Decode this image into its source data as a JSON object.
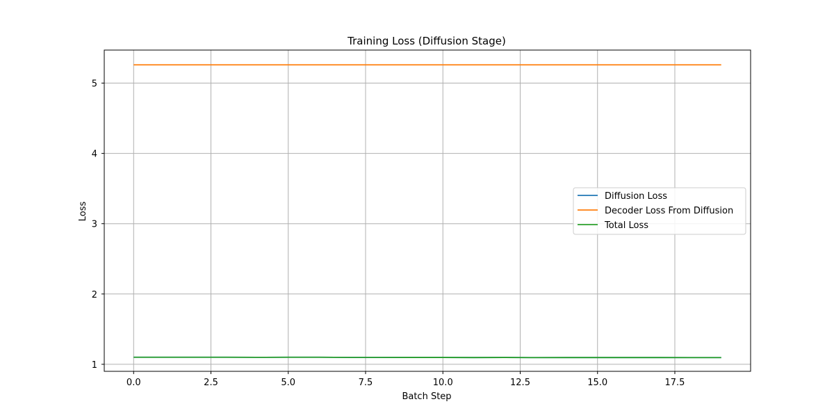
{
  "chart_data": {
    "type": "line",
    "title": "Training Loss (Diffusion Stage)",
    "xlabel": "Batch Step",
    "ylabel": "Loss",
    "xlim": [
      -0.95,
      19.95
    ],
    "ylim": [
      0.9,
      5.47
    ],
    "xticks": [
      0.0,
      2.5,
      5.0,
      7.5,
      10.0,
      12.5,
      15.0,
      17.5
    ],
    "xtick_labels": [
      "0.0",
      "2.5",
      "5.0",
      "7.5",
      "10.0",
      "12.5",
      "15.0",
      "17.5"
    ],
    "yticks": [
      1,
      2,
      3,
      4,
      5
    ],
    "ytick_labels": [
      "1",
      "2",
      "3",
      "4",
      "5"
    ],
    "grid": true,
    "legend_position": "center-right",
    "x": [
      0,
      1,
      2,
      3,
      4,
      5,
      6,
      7,
      8,
      9,
      10,
      11,
      12,
      13,
      14,
      15,
      16,
      17,
      18,
      19
    ],
    "series": [
      {
        "name": "Diffusion Loss",
        "color": "#1f77b4",
        "values": [
          1.1,
          1.1,
          1.1,
          1.1,
          1.099,
          1.1,
          1.1,
          1.098,
          1.098,
          1.097,
          1.097,
          1.096,
          1.097,
          1.095,
          1.096,
          1.096,
          1.096,
          1.096,
          1.095,
          1.095
        ]
      },
      {
        "name": "Decoder Loss From Diffusion",
        "color": "#ff7f0e",
        "values": [
          5.26,
          5.26,
          5.26,
          5.26,
          5.26,
          5.26,
          5.26,
          5.26,
          5.26,
          5.26,
          5.26,
          5.26,
          5.26,
          5.26,
          5.26,
          5.26,
          5.26,
          5.26,
          5.26,
          5.26
        ]
      },
      {
        "name": "Total Loss",
        "color": "#2ca02c",
        "values": [
          1.1,
          1.1,
          1.1,
          1.1,
          1.099,
          1.1,
          1.1,
          1.098,
          1.098,
          1.097,
          1.097,
          1.096,
          1.097,
          1.095,
          1.096,
          1.096,
          1.096,
          1.096,
          1.095,
          1.095
        ]
      }
    ]
  }
}
